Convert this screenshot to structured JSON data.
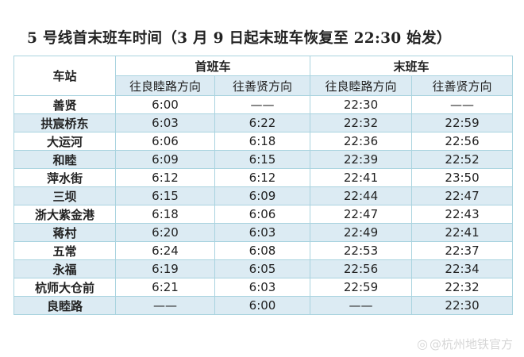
{
  "title": "5 号线首末班车时间（3 月 9 日起末班车恢复至 22:30 始发）",
  "table": {
    "station_header": "车站",
    "group_headers": [
      "首班车",
      "末班车"
    ],
    "direction_headers": [
      "往良睦路方向",
      "往善贤方向",
      "往良睦路方向",
      "往善贤方向"
    ],
    "rows": [
      {
        "station": "善贤",
        "times": [
          "6:00",
          "——",
          "22:30",
          "——"
        ]
      },
      {
        "station": "拱宸桥东",
        "times": [
          "6:03",
          "6:22",
          "22:32",
          "22:59"
        ]
      },
      {
        "station": "大运河",
        "times": [
          "6:06",
          "6:18",
          "22:36",
          "22:56"
        ]
      },
      {
        "station": "和睦",
        "times": [
          "6:09",
          "6:15",
          "22:39",
          "22:52"
        ]
      },
      {
        "station": "萍水街",
        "times": [
          "6:12",
          "6:12",
          "22:41",
          "23:50"
        ]
      },
      {
        "station": "三坝",
        "times": [
          "6:15",
          "6:09",
          "22:44",
          "22:47"
        ]
      },
      {
        "station": "浙大紫金港",
        "times": [
          "6:18",
          "6:06",
          "22:47",
          "22:43"
        ]
      },
      {
        "station": "蒋村",
        "times": [
          "6:20",
          "6:03",
          "22:49",
          "22:41"
        ]
      },
      {
        "station": "五常",
        "times": [
          "6:24",
          "6:08",
          "22:53",
          "22:37"
        ]
      },
      {
        "station": "永福",
        "times": [
          "6:19",
          "6:05",
          "22:56",
          "22:34"
        ]
      },
      {
        "station": "杭师大仓前",
        "times": [
          "6:21",
          "6:03",
          "22:59",
          "22:32"
        ]
      },
      {
        "station": "良睦路",
        "times": [
          "——",
          "6:00",
          "——",
          "22:30"
        ]
      }
    ]
  },
  "watermark": "@杭州地铁官方",
  "colors": {
    "row_shade": "#dcebf3",
    "border": "#a9d3df"
  }
}
